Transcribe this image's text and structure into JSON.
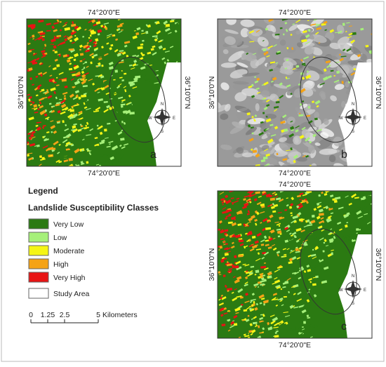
{
  "panels": [
    {
      "label": "a",
      "top": "74°20'0\"E",
      "bottom": "74°20'0\"E",
      "left": "36°10'0\"N",
      "right": "36°10'0\"N"
    },
    {
      "label": "b",
      "top": "74°20'0\"E",
      "bottom": "74°20'0\"E",
      "left": "36°10'0\"N",
      "right": "36°10'0\"N"
    },
    {
      "label": "c",
      "top": "74°20'0\"E",
      "bottom": "74°20'0\"E",
      "left": "36°10'0\"N",
      "right": "36°10'0\"N"
    }
  ],
  "compass": {
    "n": "N",
    "e": "E",
    "s": "S",
    "w": "W"
  },
  "legend": {
    "title": "Legend",
    "subtitle": "Landslide Susceptibility Classes",
    "classes": [
      {
        "name": "Very Low",
        "color": "#2b7a12"
      },
      {
        "name": "Low",
        "color": "#a6f07a"
      },
      {
        "name": "Moderate",
        "color": "#f5f516"
      },
      {
        "name": "High",
        "color": "#f5a316"
      },
      {
        "name": "Very High",
        "color": "#e81414"
      }
    ],
    "study_area": "Study Area"
  },
  "scale_bar": {
    "ticks": [
      "0",
      "1.25",
      "2.5",
      "5"
    ],
    "unit": "Kilometers"
  }
}
